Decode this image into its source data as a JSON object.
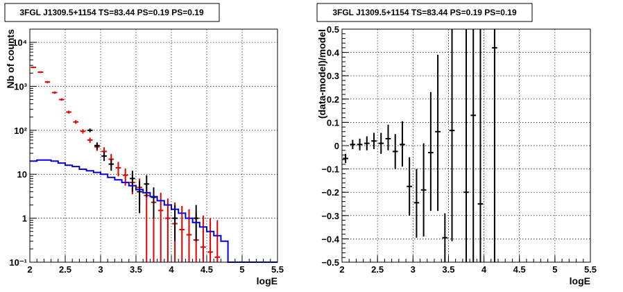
{
  "colors": {
    "data": "#000000",
    "model": "#e00000",
    "source_model": "#0000dd"
  },
  "chart_data": [
    {
      "type": "line",
      "title": "3FGL J1309.5+1154 TS=83.44 PS=0.19 PS=0.19",
      "xlabel": "logE",
      "ylabel": "Nb of counts",
      "xlim": [
        2,
        5.5
      ],
      "ylim": [
        0.1,
        20000
      ],
      "y_scale": "log",
      "grid": true,
      "x_ticks": [
        "2",
        "2.5",
        "3",
        "3.5",
        "4",
        "4.5",
        "5",
        "5.5"
      ],
      "y_ticks": [
        "10⁻¹",
        "1",
        "10",
        "10²",
        "10³",
        "10⁴"
      ],
      "series": [
        {
          "role": "model",
          "color": "#e00000",
          "style": "errorbar",
          "x": [
            2.05,
            2.15,
            2.25,
            2.35,
            2.45,
            2.55,
            2.65,
            2.75,
            2.85,
            2.95,
            3.05,
            3.15,
            3.25,
            3.35,
            3.45,
            3.55,
            3.65,
            3.75,
            3.85,
            3.95,
            4.05,
            4.15,
            4.25,
            4.35,
            4.45,
            4.55,
            4.65
          ],
          "y": [
            2700,
            2100,
            1250,
            720,
            500,
            260,
            155,
            95,
            60,
            42,
            33,
            22,
            14,
            9.5,
            6.5,
            5,
            3.3,
            2.3,
            1.5,
            1,
            0.75,
            0.55,
            0.42,
            0.32,
            0.22,
            0.17,
            0.13
          ],
          "y_low": [
            2600,
            2000,
            1180,
            680,
            470,
            240,
            140,
            84,
            52,
            34,
            25,
            15,
            9,
            5.5,
            3.5,
            2,
            0.1,
            0.1,
            0.1,
            0.1,
            0.1,
            0.1,
            0.1,
            0.1,
            0.1,
            0.1,
            0.1
          ],
          "y_high": [
            2800,
            2200,
            1320,
            760,
            530,
            280,
            170,
            106,
            68,
            50,
            41,
            29,
            19,
            13.5,
            10,
            8,
            6.5,
            5,
            3.8,
            2.8,
            2.3,
            1.9,
            1.6,
            1.35,
            1.15,
            1,
            0.9
          ]
        },
        {
          "role": "data",
          "color": "#000000",
          "style": "errorbar",
          "x": [
            2.85,
            2.95,
            3.05,
            3.15,
            3.45,
            3.55,
            3.65,
            3.75,
            4.05,
            4.35
          ],
          "y": [
            100,
            45,
            26,
            17,
            8,
            4,
            6,
            3,
            1,
            1
          ],
          "y_low": [
            90,
            37,
            20,
            12,
            4,
            1.3,
            3,
            1,
            0.3,
            0.3
          ],
          "y_high": [
            110,
            53,
            32,
            22,
            12,
            7,
            9.5,
            5,
            2,
            2
          ]
        },
        {
          "role": "source model",
          "color": "#0000dd",
          "style": "step",
          "edges": [
            2,
            2.1,
            2.2,
            2.3,
            2.4,
            2.5,
            2.6,
            2.7,
            2.8,
            2.9,
            3,
            3.1,
            3.2,
            3.3,
            3.4,
            3.5,
            3.6,
            3.7,
            3.8,
            3.9,
            4,
            4.1,
            4.2,
            4.3,
            4.4,
            4.5,
            4.6,
            4.7,
            4.8,
            4.9,
            5,
            5.1,
            5.2,
            5.3,
            5.4,
            5.5
          ],
          "values": [
            20,
            21,
            21,
            20,
            18,
            16,
            15,
            13,
            12,
            11,
            10,
            8.5,
            7.5,
            6.5,
            5.5,
            4.5,
            3.8,
            3.1,
            2.5,
            2,
            1.6,
            1.3,
            1,
            0.8,
            0.63,
            0.5,
            0.4,
            0.3,
            0.1,
            0.1,
            0.1,
            0.1,
            0.1,
            0.1,
            0.1
          ]
        }
      ]
    },
    {
      "type": "line",
      "title": "3FGL J1309.5+1154 TS=83.44 PS=0.19 PS=0.19",
      "xlabel": "logE",
      "ylabel": "(data-model)/model",
      "xlim": [
        2,
        5.5
      ],
      "ylim": [
        -0.5,
        0.5
      ],
      "grid": true,
      "x_ticks": [
        "2",
        "2.5",
        "3",
        "3.5",
        "4",
        "4.5",
        "5",
        "5.5"
      ],
      "y_ticks": [
        "−0.5",
        "−0.4",
        "−0.3",
        "−0.2",
        "−0.1",
        "0",
        "0.1",
        "0.2",
        "0.3",
        "0.4",
        "0.5"
      ],
      "series": [
        {
          "role": "residual",
          "color": "#000000",
          "style": "errorbar",
          "x": [
            2.05,
            2.15,
            2.25,
            2.35,
            2.45,
            2.55,
            2.65,
            2.75,
            2.85,
            2.95,
            3.05,
            3.15,
            3.25,
            3.35,
            3.45,
            3.55,
            3.75,
            3.85,
            3.95,
            4.15
          ],
          "y": [
            -0.055,
            0.005,
            0.005,
            0.01,
            0.02,
            0.01,
            0.03,
            -0.025,
            0.005,
            -0.175,
            -0.245,
            -0.19,
            -0.03,
            0.06,
            -0.395,
            0.065,
            -0.2,
            0.13,
            -0.25,
            0.42
          ],
          "y_low": [
            -0.075,
            -0.015,
            -0.02,
            -0.02,
            -0.015,
            -0.035,
            -0.02,
            -0.1,
            -0.09,
            -0.3,
            -0.395,
            -0.39,
            -0.28,
            -0.28,
            -0.5,
            -0.41,
            -0.5,
            -0.5,
            -0.5,
            -0.5
          ],
          "y_high": [
            -0.035,
            0.025,
            0.03,
            0.04,
            0.055,
            0.055,
            0.09,
            0.05,
            0.105,
            -0.05,
            -0.1,
            0.01,
            0.23,
            0.39,
            -0.29,
            0.5,
            0.5,
            0.5,
            0.5,
            0.5
          ]
        }
      ]
    }
  ]
}
